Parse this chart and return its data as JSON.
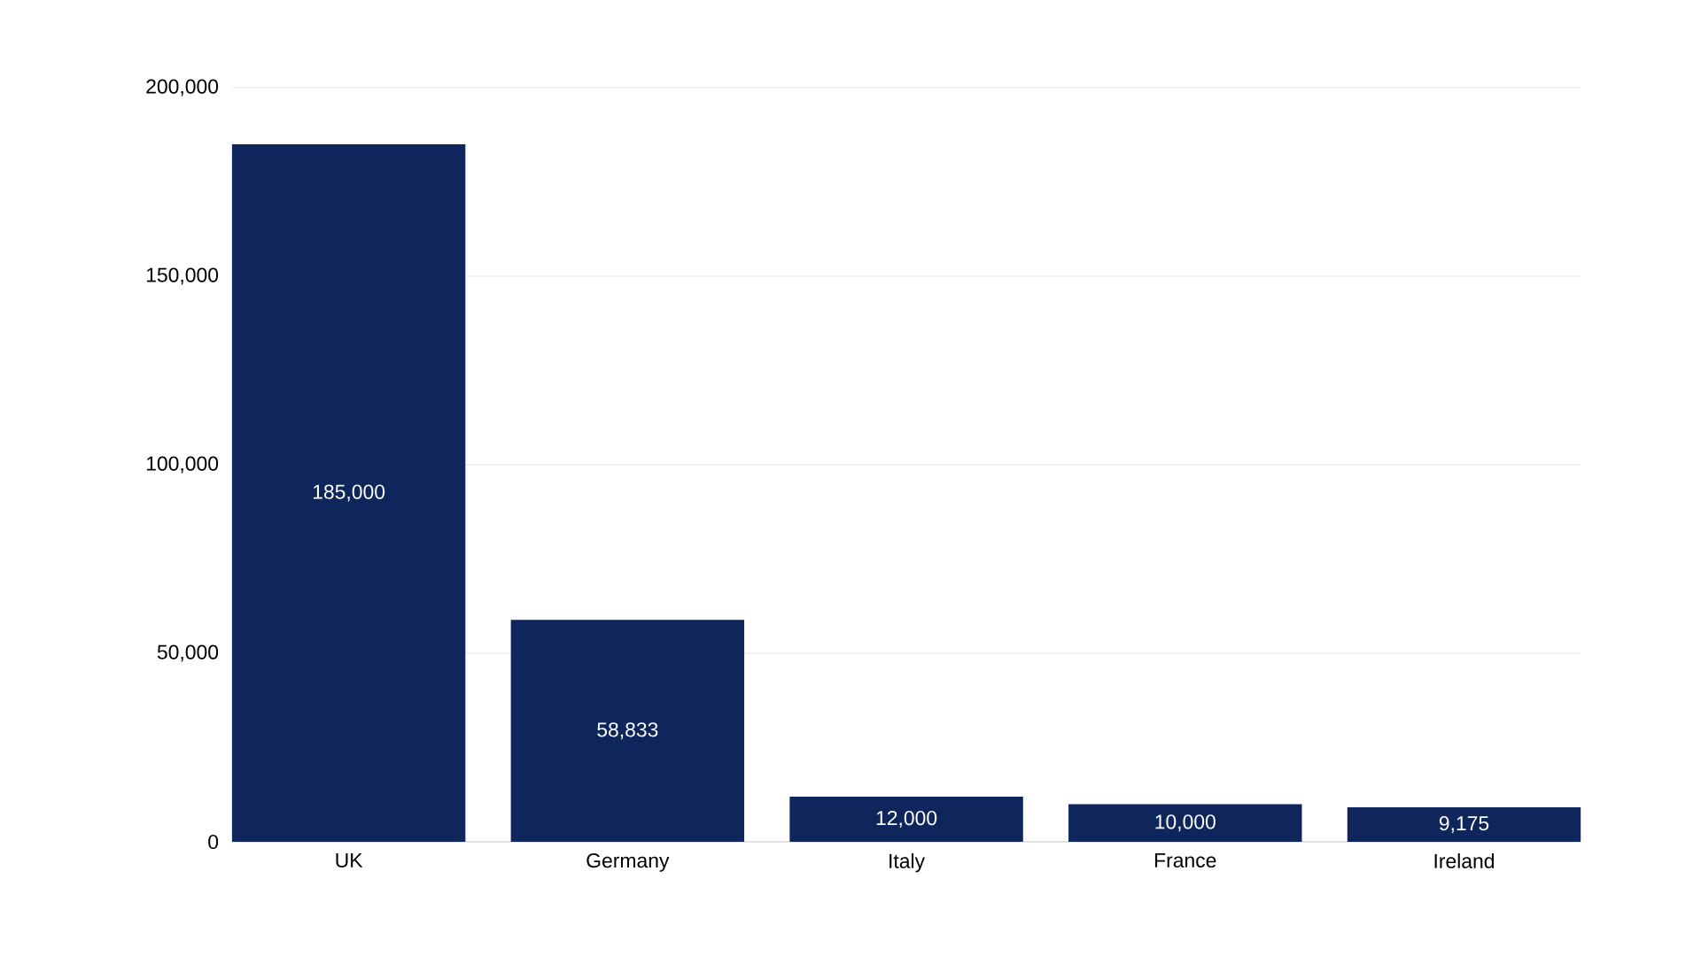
{
  "chart_data": {
    "type": "bar",
    "categories": [
      "UK",
      "Germany",
      "Italy",
      "France",
      "Ireland"
    ],
    "values": [
      185000,
      58833,
      12000,
      10000,
      9175
    ],
    "value_labels": [
      "185,000",
      "58,833",
      "12,000",
      "10,000",
      "9,175"
    ],
    "color": "#0e265c",
    "ylim": [
      0,
      200000
    ],
    "yticks": [
      {
        "value": 0,
        "label": "0"
      },
      {
        "value": 50000,
        "label": "50,000"
      },
      {
        "value": 100000,
        "label": "100,000"
      },
      {
        "value": 150000,
        "label": "150,000"
      },
      {
        "value": 200000,
        "label": "200,000"
      }
    ],
    "grid": "y"
  }
}
